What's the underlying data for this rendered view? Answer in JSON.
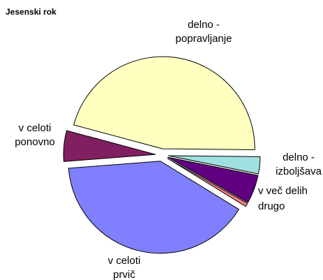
{
  "chart_data": {
    "type": "pie",
    "title": "Jesenski rok",
    "categories": [
      "delno -\npopravljanje",
      "delno -\nizboljšava",
      "v več delih",
      "drugo",
      "v celoti\nprvič",
      "v celoti\nponovno"
    ],
    "values": [
      46,
      3,
      5,
      0.6,
      40,
      5.4
    ],
    "colors": [
      "#ffffc0",
      "#a0e0e0",
      "#600080",
      "#ff8080",
      "#8080ff",
      "#802060"
    ]
  }
}
